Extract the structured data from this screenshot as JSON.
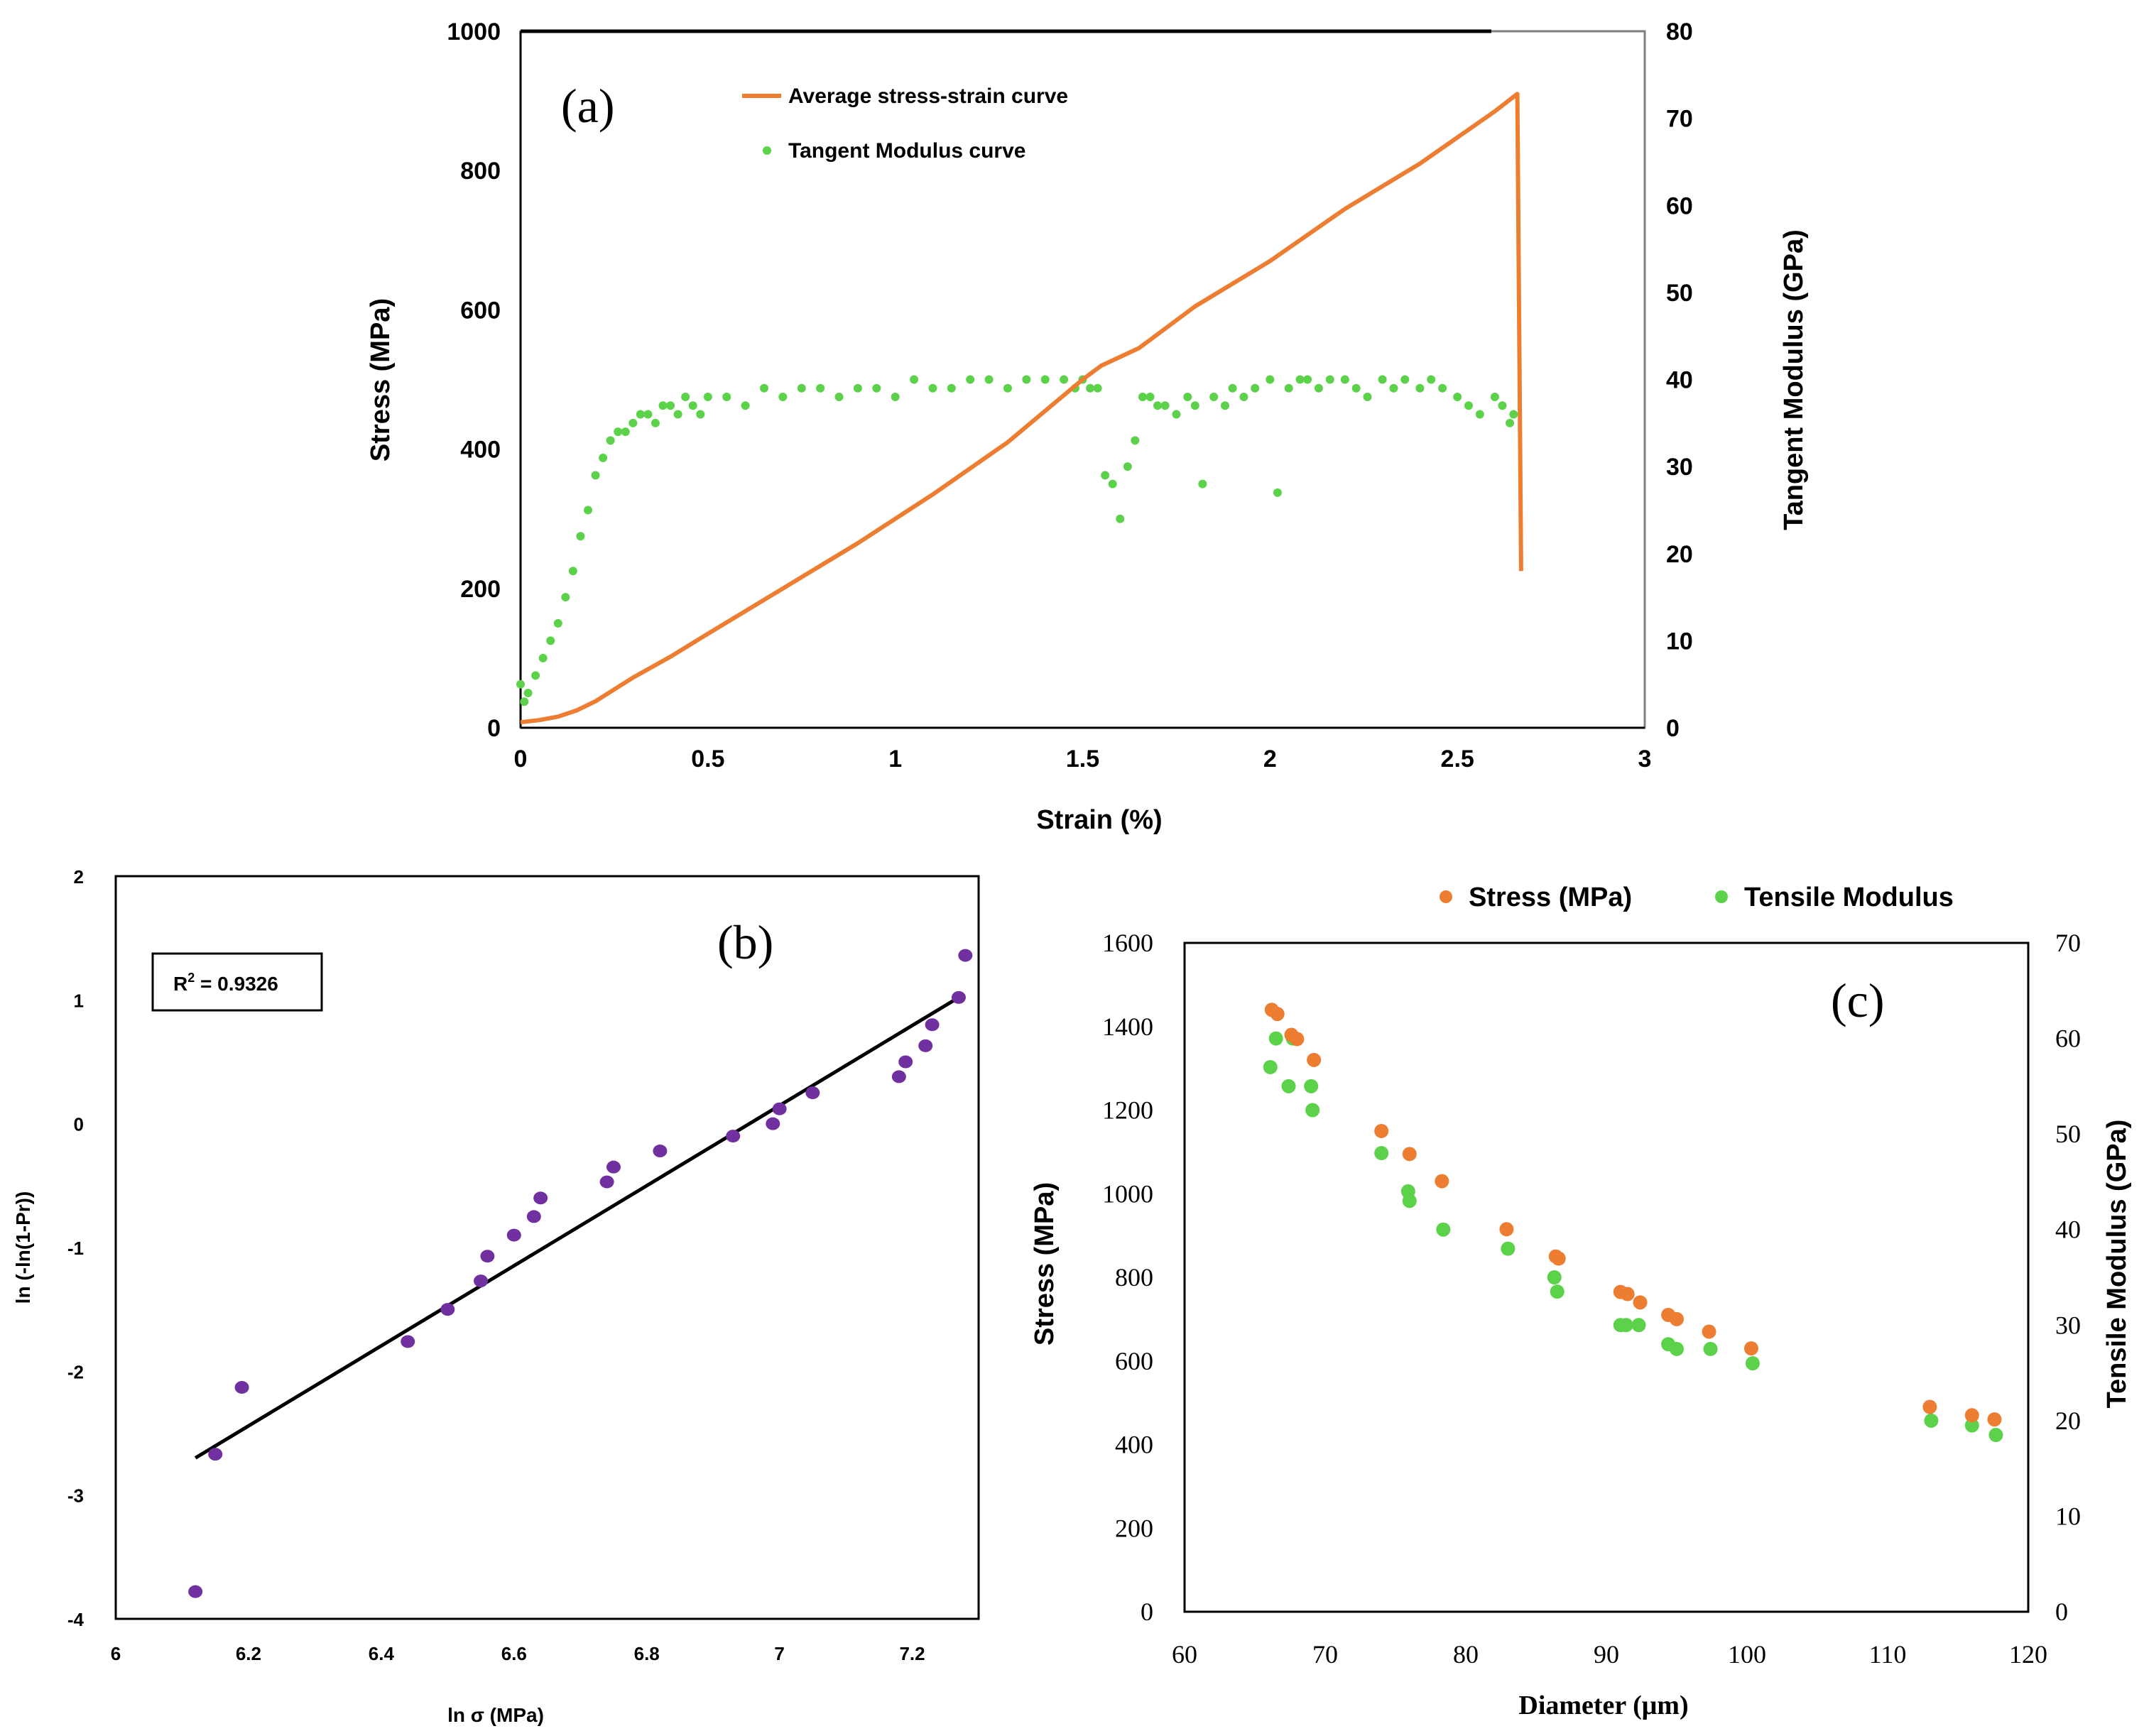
{
  "colors": {
    "orange": "#ED7D31",
    "green": "#5CD14A",
    "purple": "#7030A0",
    "black": "#000000",
    "frame_gray": "#808080"
  },
  "chart_data": [
    {
      "id": "a",
      "type": "line",
      "panel_label": "(a)",
      "xlabel": "Strain (%)",
      "ylabel": "Stress (MPa)",
      "y2label": "Tangent Modulus (GPa)",
      "xlim": [
        0,
        3
      ],
      "ylim": [
        0,
        1000
      ],
      "y2lim": [
        0,
        80
      ],
      "xticks": [
        "0",
        "0.5",
        "1",
        "1.5",
        "2",
        "2.5",
        "3"
      ],
      "yticks": [
        "0",
        "200",
        "400",
        "600",
        "800",
        "1000"
      ],
      "y2ticks": [
        "0",
        "10",
        "20",
        "30",
        "40",
        "50",
        "60",
        "70",
        "80"
      ],
      "legend": [
        "Average stress-strain curve",
        "Tangent Modulus curve"
      ],
      "series": [
        {
          "name": "Average stress-strain curve",
          "axis": "left",
          "x": [
            0,
            0.05,
            0.1,
            0.15,
            0.2,
            0.25,
            0.3,
            0.4,
            0.5,
            0.7,
            0.9,
            1.1,
            1.3,
            1.5,
            1.55,
            1.65,
            1.8,
            2.0,
            2.2,
            2.4,
            2.6,
            2.66,
            2.67
          ],
          "y": [
            8,
            11,
            16,
            25,
            38,
            55,
            72,
            102,
            135,
            200,
            265,
            335,
            410,
            500,
            520,
            545,
            605,
            670,
            745,
            810,
            885,
            910,
            225
          ]
        },
        {
          "name": "Tangent Modulus curve",
          "axis": "right",
          "x": [
            0.0,
            0.01,
            0.02,
            0.04,
            0.06,
            0.08,
            0.1,
            0.12,
            0.14,
            0.16,
            0.18,
            0.2,
            0.22,
            0.24,
            0.26,
            0.28,
            0.3,
            0.32,
            0.34,
            0.36,
            0.38,
            0.4,
            0.42,
            0.44,
            0.46,
            0.48,
            0.5,
            0.55,
            0.6,
            0.65,
            0.7,
            0.75,
            0.8,
            0.85,
            0.9,
            0.95,
            1.0,
            1.05,
            1.1,
            1.15,
            1.2,
            1.25,
            1.3,
            1.35,
            1.4,
            1.45,
            1.48,
            1.5,
            1.52,
            1.54,
            1.56,
            1.58,
            1.6,
            1.62,
            1.64,
            1.66,
            1.68,
            1.7,
            1.72,
            1.75,
            1.78,
            1.8,
            1.82,
            1.85,
            1.88,
            1.9,
            1.93,
            1.96,
            2.0,
            2.02,
            2.05,
            2.08,
            2.1,
            2.13,
            2.16,
            2.2,
            2.23,
            2.26,
            2.3,
            2.33,
            2.36,
            2.4,
            2.43,
            2.46,
            2.5,
            2.53,
            2.56,
            2.6,
            2.62,
            2.64,
            2.65
          ],
          "y": [
            5,
            3,
            4,
            6,
            8,
            10,
            12,
            15,
            18,
            22,
            25,
            29,
            31,
            33,
            34,
            34,
            35,
            36,
            36,
            35,
            37,
            37,
            36,
            38,
            37,
            36,
            38,
            38,
            37,
            39,
            38,
            39,
            39,
            38,
            39,
            39,
            38,
            40,
            39,
            39,
            40,
            40,
            39,
            40,
            40,
            40,
            39,
            40,
            39,
            39,
            29,
            28,
            24,
            30,
            33,
            38,
            38,
            37,
            37,
            36,
            38,
            37,
            28,
            38,
            37,
            39,
            38,
            39,
            40,
            27,
            39,
            40,
            40,
            39,
            40,
            40,
            39,
            38,
            40,
            39,
            40,
            39,
            40,
            39,
            38,
            37,
            36,
            38,
            37,
            35,
            36
          ]
        }
      ]
    },
    {
      "id": "b",
      "type": "scatter",
      "panel_label": "(b)",
      "xlabel": "ln σ (MPa)",
      "ylabel": "ln (-ln(1-Pr))",
      "xlim": [
        6,
        7.3
      ],
      "ylim": [
        -4,
        2
      ],
      "xticks": [
        "6",
        "6.2",
        "6.4",
        "6.6",
        "6.8",
        "7",
        "7.2"
      ],
      "yticks": [
        "-4",
        "-3",
        "-2",
        "-1",
        "0",
        "1",
        "2"
      ],
      "annotation": "R² = 0.9326",
      "annotation_main": "R",
      "annotation_sup": "2",
      "annotation_rest": " = 0.9326",
      "series": [
        {
          "name": "data",
          "x": [
            6.12,
            6.15,
            6.19,
            6.44,
            6.5,
            6.55,
            6.56,
            6.6,
            6.63,
            6.64,
            6.74,
            6.75,
            6.82,
            6.93,
            6.99,
            7.0,
            7.05,
            7.18,
            7.19,
            7.22,
            7.23,
            7.27,
            7.28
          ],
          "y": [
            -3.78,
            -2.67,
            -2.13,
            -1.76,
            -1.5,
            -1.27,
            -1.07,
            -0.9,
            -0.75,
            -0.6,
            -0.47,
            -0.35,
            -0.22,
            -0.1,
            0.0,
            0.12,
            0.25,
            0.38,
            0.5,
            0.63,
            0.8,
            1.02,
            1.36
          ]
        },
        {
          "name": "fit",
          "x": [
            6.12,
            7.27
          ],
          "y": [
            -2.7,
            1.02
          ]
        }
      ]
    },
    {
      "id": "c",
      "type": "scatter",
      "panel_label": "(c)",
      "xlabel": "Diameter (μm)",
      "ylabel": "Stress (MPa)",
      "y2label": "Tensile Modulus (GPa)",
      "xlim": [
        60,
        120
      ],
      "ylim": [
        0,
        1600
      ],
      "y2lim": [
        0,
        70
      ],
      "xticks": [
        "60",
        "70",
        "80",
        "90",
        "100",
        "110",
        "120"
      ],
      "yticks": [
        "0",
        "200",
        "400",
        "600",
        "800",
        "1000",
        "1200",
        "1400",
        "1600"
      ],
      "y2ticks": [
        "0",
        "10",
        "20",
        "30",
        "40",
        "50",
        "60",
        "70"
      ],
      "legend": [
        "Stress (MPa)",
        "Tensile Modulus"
      ],
      "series": [
        {
          "name": "Stress (MPa)",
          "axis": "left",
          "x": [
            66.2,
            66.6,
            67.6,
            68.0,
            69.2,
            74.0,
            76.0,
            78.3,
            82.9,
            86.4,
            86.6,
            91.0,
            91.5,
            92.4,
            94.4,
            95.0,
            97.3,
            100.3,
            113.0,
            116.0,
            117.6
          ],
          "y": [
            1440,
            1430,
            1380,
            1370,
            1320,
            1150,
            1095,
            1030,
            915,
            850,
            845,
            765,
            760,
            740,
            710,
            700,
            670,
            630,
            490,
            470,
            460
          ]
        },
        {
          "name": "Tensile Modulus",
          "axis": "right",
          "x": [
            66.1,
            66.5,
            67.4,
            67.7,
            69.0,
            69.1,
            74.0,
            75.9,
            76.0,
            78.4,
            83.0,
            86.3,
            86.5,
            91.0,
            91.4,
            92.3,
            94.4,
            95.0,
            97.4,
            100.4,
            113.1,
            116.0,
            117.7
          ],
          "y": [
            57,
            60,
            55,
            60,
            55,
            52.5,
            48,
            44,
            43,
            40,
            38,
            35,
            33.5,
            30,
            30,
            30,
            28,
            27.5,
            27.5,
            26,
            20,
            19.5,
            18.5
          ]
        }
      ]
    }
  ]
}
